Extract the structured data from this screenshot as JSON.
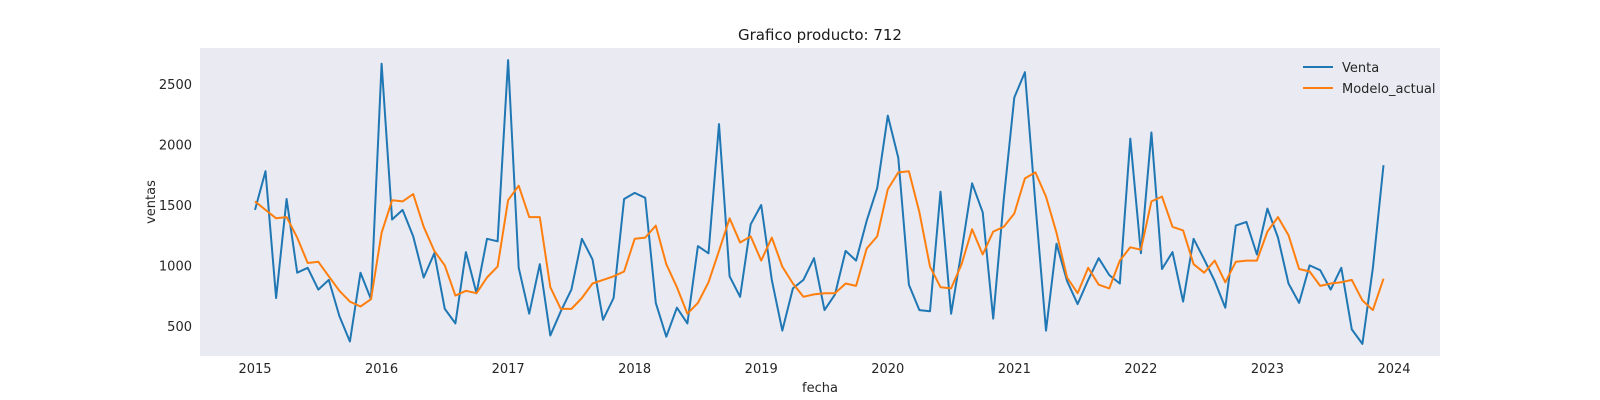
{
  "chart_data": {
    "type": "line",
    "title": "Grafico producto: 712",
    "xlabel": "fecha",
    "ylabel": "ventas",
    "x_start": "2015-01",
    "x_end": "2023-12",
    "x_ticks": [
      "2015",
      "2016",
      "2017",
      "2018",
      "2019",
      "2020",
      "2021",
      "2022",
      "2023",
      "2024"
    ],
    "y_ticks": [
      500,
      1000,
      1500,
      2000,
      2500
    ],
    "ylim": [
      250,
      2800
    ],
    "grid": false,
    "legend": "top-right",
    "background": "#eaeaf2",
    "series": [
      {
        "name": "Venta",
        "color": "#1f77b4",
        "values": [
          1460,
          1780,
          730,
          1550,
          940,
          980,
          800,
          880,
          580,
          370,
          940,
          720,
          2670,
          1380,
          1460,
          1240,
          900,
          1100,
          640,
          520,
          1110,
          770,
          1220,
          1200,
          2700,
          980,
          600,
          1010,
          420,
          620,
          800,
          1220,
          1050,
          550,
          730,
          1550,
          1600,
          1560,
          690,
          410,
          650,
          520,
          1160,
          1100,
          2170,
          910,
          740,
          1340,
          1500,
          880,
          460,
          810,
          880,
          1060,
          630,
          760,
          1120,
          1040,
          1370,
          1640,
          2240,
          1890,
          840,
          630,
          620,
          1610,
          600,
          1120,
          1680,
          1440,
          560,
          1550,
          2390,
          2600,
          1510,
          460,
          1180,
          870,
          680,
          880,
          1060,
          920,
          850,
          2050,
          1100,
          2100,
          970,
          1110,
          700,
          1220,
          1050,
          870,
          650,
          1330,
          1360,
          1090,
          1470,
          1230,
          850,
          690,
          1000,
          960,
          800,
          980,
          470,
          350,
          980,
          1830
        ]
      },
      {
        "name": "Modelo_actual",
        "color": "#ff7f0e",
        "values": [
          1530,
          1460,
          1390,
          1400,
          1230,
          1020,
          1030,
          910,
          790,
          700,
          660,
          720,
          1270,
          1540,
          1530,
          1590,
          1320,
          1120,
          1000,
          750,
          790,
          770,
          900,
          990,
          1540,
          1660,
          1400,
          1400,
          820,
          640,
          640,
          730,
          850,
          880,
          910,
          950,
          1220,
          1230,
          1330,
          1010,
          820,
          600,
          690,
          860,
          1120,
          1390,
          1190,
          1240,
          1040,
          1230,
          990,
          850,
          740,
          760,
          770,
          770,
          850,
          830,
          1140,
          1240,
          1630,
          1770,
          1780,
          1440,
          990,
          820,
          810,
          1010,
          1300,
          1090,
          1280,
          1320,
          1430,
          1720,
          1770,
          1570,
          1270,
          900,
          770,
          980,
          840,
          810,
          1040,
          1150,
          1130,
          1530,
          1570,
          1320,
          1290,
          1010,
          940,
          1040,
          860,
          1030,
          1040,
          1040,
          1280,
          1400,
          1250,
          970,
          950,
          830,
          850,
          860,
          880,
          710,
          630,
          890
        ]
      }
    ]
  }
}
